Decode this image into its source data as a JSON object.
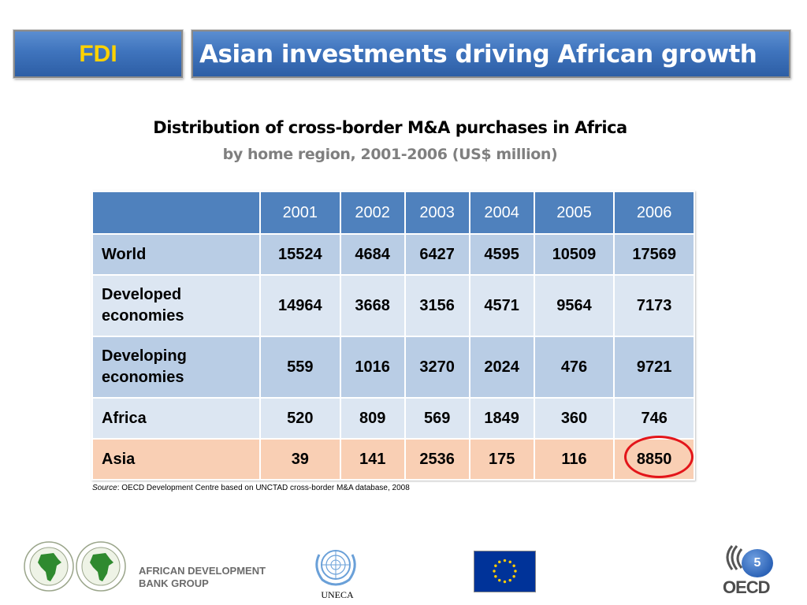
{
  "header": {
    "section_label": "FDI",
    "slide_title": "Asian investments driving African growth"
  },
  "table": {
    "title": "Distribution of cross-border M&A purchases in Africa",
    "subtitle": "by home region, 2001-2006 (US$ million)",
    "columns": [
      "2001",
      "2002",
      "2003",
      "2004",
      "2005",
      "2006"
    ],
    "rows": [
      {
        "label": "World",
        "values": [
          "15524",
          "4684",
          "6427",
          "4595",
          "10509",
          "17569"
        ]
      },
      {
        "label": "Developed economies",
        "values": [
          "14964",
          "3668",
          "3156",
          "4571",
          "9564",
          "7173"
        ]
      },
      {
        "label": "Developing economies",
        "values": [
          "559",
          "1016",
          "3270",
          "2024",
          "476",
          "9721"
        ]
      },
      {
        "label": "Africa",
        "values": [
          "520",
          "809",
          "569",
          "1849",
          "360",
          "746"
        ]
      },
      {
        "label": "Asia",
        "values": [
          "39",
          "141",
          "2536",
          "175",
          "116",
          "8850"
        ]
      }
    ],
    "highlight_color": "#e3151a"
  },
  "source": {
    "prefix": "Source",
    "text": ": OECD Development Centre based on UNCTAD cross-border M&A database, 2008"
  },
  "footer": {
    "afdb_line1": "AFRICAN DEVELOPMENT",
    "afdb_line2": "BANK GROUP",
    "un_label": "UNECA",
    "page_number": "5",
    "logos": [
      "afdb-logo",
      "un-logo",
      "eu-flag",
      "oecd-logo"
    ]
  },
  "colors": {
    "header_blue": "#3f74bd",
    "header_label": "#ffd200",
    "table_header": "#4f81bd",
    "row_dark": "#b9cde5",
    "row_light": "#dce6f2",
    "row_asia": "#f9cfb4"
  }
}
